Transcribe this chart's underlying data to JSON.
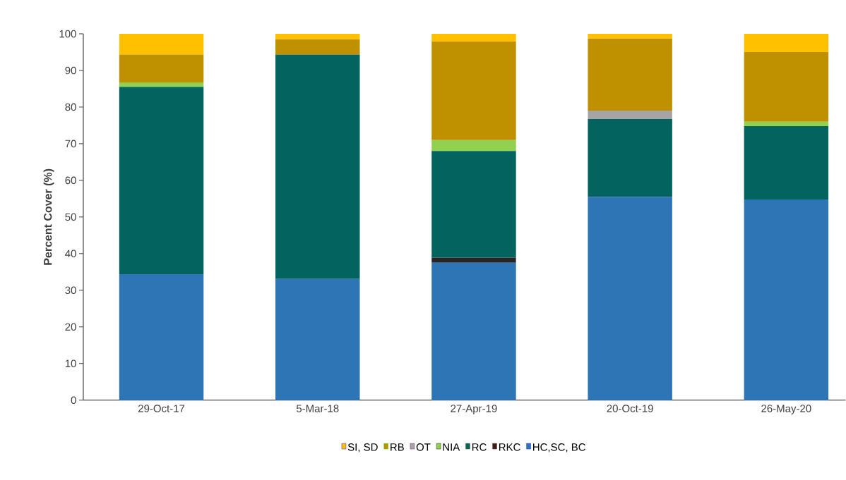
{
  "chart_data": {
    "type": "bar",
    "stacked": true,
    "ylabel": "Percent Cover (%)",
    "categories": [
      "29-Oct-17",
      "5-Mar-18",
      "27-Apr-19",
      "20-Oct-19",
      "26-May-20"
    ],
    "series": [
      {
        "name": "HC,SC, BC",
        "color": "#2e75b6",
        "values": [
          34.4,
          33.1,
          37.5,
          55.5,
          54.8
        ]
      },
      {
        "name": "RKC",
        "color": "#262626",
        "values": [
          null,
          null,
          1.4,
          null,
          null
        ]
      },
      {
        "name": "RC",
        "color": "#02635f",
        "values": [
          51.1,
          61.2,
          29.1,
          21.2,
          20.0
        ]
      },
      {
        "name": "NIA",
        "color": "#92d050",
        "values": [
          1.2,
          null,
          3.0,
          null,
          1.2
        ]
      },
      {
        "name": "OT",
        "color": "#a5a5a5",
        "values": [
          null,
          null,
          null,
          2.3,
          null
        ]
      },
      {
        "name": "RB",
        "color": "#bf9000",
        "values": [
          7.6,
          4.2,
          26.9,
          19.7,
          19.0
        ]
      },
      {
        "name": "SI, SD",
        "color": "#ffc000",
        "values": [
          5.7,
          1.5,
          2.1,
          1.3,
          5.0
        ]
      }
    ],
    "ylim": [
      0,
      100
    ],
    "yticks": [
      0,
      10,
      20,
      30,
      40,
      50,
      60,
      70,
      80,
      90,
      100
    ],
    "legend": "bottom"
  }
}
